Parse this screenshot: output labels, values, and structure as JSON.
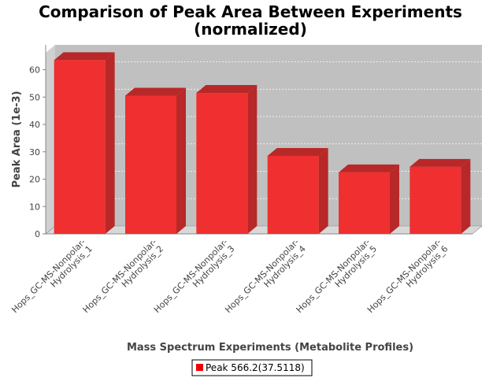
{
  "colors": {
    "bar_front": "#f03030",
    "bar_top": "#b82828",
    "bar_side": "#b82828",
    "plot_back": "#c0c0c0",
    "plot_floor": "#d8d8d8",
    "grid": "#ffffff"
  },
  "chart_data": {
    "type": "bar",
    "title_line1": "Comparison of Peak Area Between Experiments",
    "title_line2": "(normalized)",
    "xlabel": "Mass Spectrum Experiments (Metabolite Profiles)",
    "ylabel": "Peak Area (1e-3)",
    "categories": [
      [
        "Hops_GC-MS-Nonpolar-",
        "Hydrolysis_1"
      ],
      [
        "Hops_GC-MS-Nonpolar-",
        "Hydrolysis_2"
      ],
      [
        "Hops_GC-MS-Nonpolar-",
        "Hydrolysis_3"
      ],
      [
        "Hops_GC-MS-Nonpolar-",
        "Hydrolysis_4"
      ],
      [
        "Hops_GC-MS-Nonpolar-",
        "Hydrolysis_5"
      ],
      [
        "Hops_GC-MS-Nonpolar-",
        "Hydrolysis_6"
      ]
    ],
    "series": [
      {
        "name": "Peak 566.2(37.5118)",
        "values": [
          63.5,
          50.5,
          51.5,
          28.5,
          22.5,
          24.5
        ]
      }
    ],
    "yticks": [
      "0",
      "10",
      "20",
      "30",
      "40",
      "50",
      "60"
    ],
    "ylim": [
      0,
      66
    ],
    "grid": true,
    "legend_position": "bottom-center"
  }
}
